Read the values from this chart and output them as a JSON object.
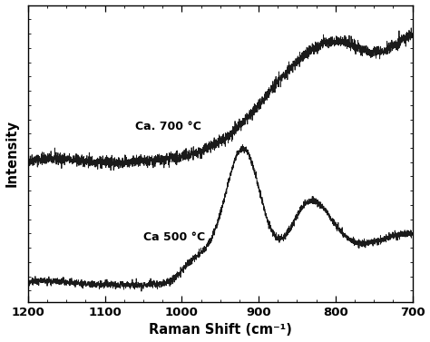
{
  "title": "",
  "xlabel": "Raman Shift (cm⁻¹)",
  "ylabel": "Intensity",
  "xlim": [
    1200,
    700
  ],
  "background_color": "#ffffff",
  "line_color": "#1a1a1a",
  "label_700": "Ca. 700 °C",
  "label_500": "Ca 500 °C",
  "xticks": [
    1200,
    1100,
    1000,
    900,
    800,
    700
  ]
}
